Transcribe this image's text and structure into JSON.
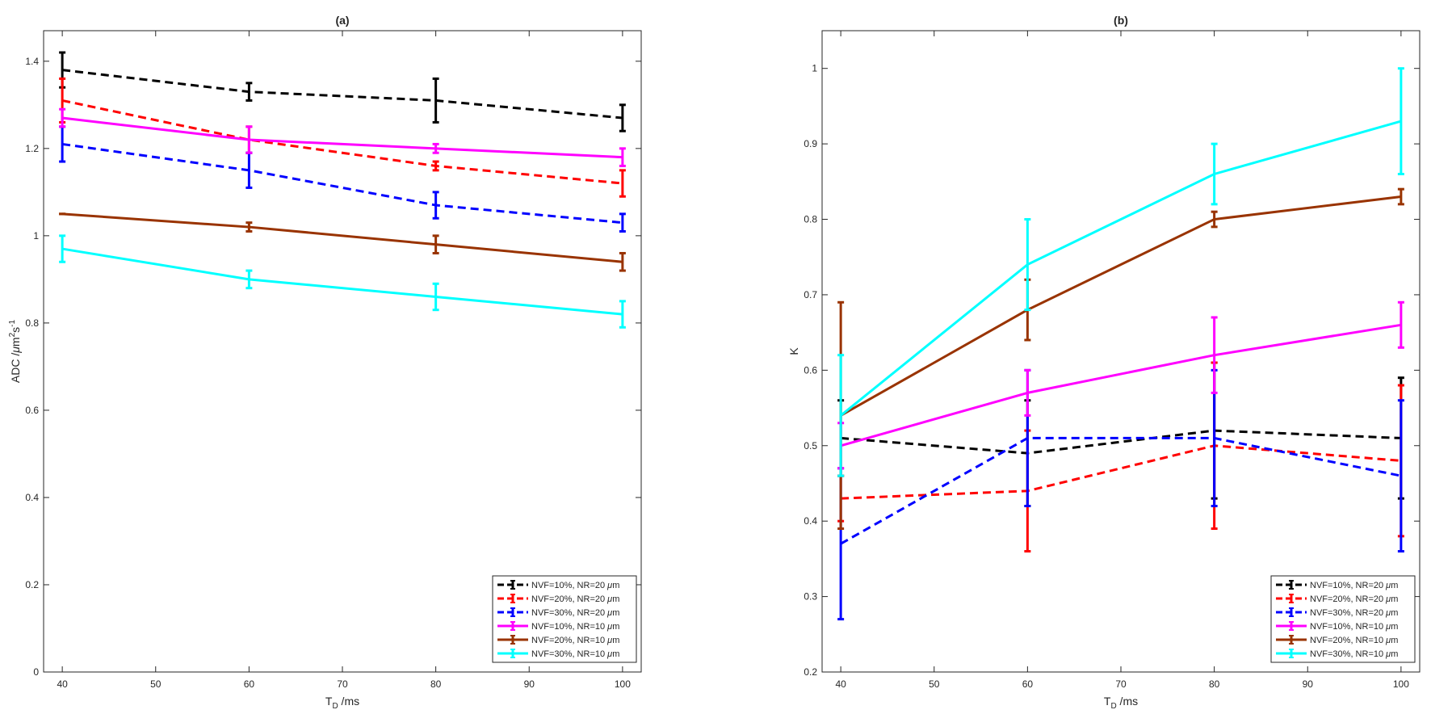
{
  "chart_data": [
    {
      "type": "line",
      "title": "(a)",
      "xlabel": {
        "main": "T",
        "sub": "D",
        "rest": " /ms"
      },
      "ylabel": {
        "pre": "ADC /",
        "mu": "μ",
        "m": "m",
        "sup1": "2",
        "s": "s",
        "sup2": "-1"
      },
      "xlim": [
        38,
        102
      ],
      "ylim": [
        0,
        1.47
      ],
      "xticks": [
        40,
        50,
        60,
        70,
        80,
        90,
        100
      ],
      "yticks": [
        0,
        0.2,
        0.4,
        0.6,
        0.8,
        1,
        1.2,
        1.4
      ],
      "ytick_labels": [
        "0",
        "0.2",
        "0.4",
        "0.6",
        "0.8",
        "1",
        "1.2",
        "1.4"
      ],
      "x": [
        40,
        60,
        80,
        100
      ],
      "legend_position": "bottom-right",
      "series": [
        {
          "name": "NVF=10%, NR=20 μm",
          "legend": {
            "pre": "NVF=10%, NR=20 ",
            "mu": "μ",
            "post": "m"
          },
          "color": "#000000",
          "dash": "dashed",
          "values": [
            1.38,
            1.33,
            1.31,
            1.27
          ],
          "errors": [
            0.04,
            0.02,
            0.05,
            0.03
          ]
        },
        {
          "name": "NVF=20%, NR=20 μm",
          "legend": {
            "pre": "NVF=20%, NR=20 ",
            "mu": "μ",
            "post": "m"
          },
          "color": "#ff0000",
          "dash": "dashed",
          "values": [
            1.31,
            1.22,
            1.16,
            1.12
          ],
          "errors": [
            0.05,
            0.03,
            0.01,
            0.03
          ]
        },
        {
          "name": "NVF=30%, NR=20 μm",
          "legend": {
            "pre": "NVF=30%, NR=20 ",
            "mu": "μ",
            "post": "m"
          },
          "color": "#0000ff",
          "dash": "dashed",
          "values": [
            1.21,
            1.15,
            1.07,
            1.03
          ],
          "errors": [
            0.04,
            0.04,
            0.03,
            0.02
          ]
        },
        {
          "name": "NVF=10%, NR=10 μm",
          "legend": {
            "pre": "NVF=10%, NR=10 ",
            "mu": "μ",
            "post": "m"
          },
          "color": "#ff00ff",
          "dash": "solid",
          "values": [
            1.27,
            1.22,
            1.2,
            1.18
          ],
          "errors": [
            0.02,
            0.03,
            0.01,
            0.02
          ]
        },
        {
          "name": "NVF=20%, NR=10 μm",
          "legend": {
            "pre": "NVF=20%, NR=10 ",
            "mu": "μ",
            "post": "m"
          },
          "color": "#993300",
          "dash": "solid",
          "values": [
            1.05,
            1.02,
            0.98,
            0.94
          ],
          "errors": [
            0.0,
            0.01,
            0.02,
            0.02
          ]
        },
        {
          "name": "NVF=30%, NR=10 μm",
          "legend": {
            "pre": "NVF=30%, NR=10 ",
            "mu": "μ",
            "post": "m"
          },
          "color": "#00ffff",
          "dash": "solid",
          "values": [
            0.97,
            0.9,
            0.86,
            0.82
          ],
          "errors": [
            0.03,
            0.02,
            0.03,
            0.03
          ]
        }
      ]
    },
    {
      "type": "line",
      "title": "(b)",
      "xlabel": {
        "main": "T",
        "sub": "D",
        "rest": " /ms"
      },
      "ylabel": {
        "pre": "K"
      },
      "xlim": [
        38,
        102
      ],
      "ylim": [
        0.2,
        1.05
      ],
      "xticks": [
        40,
        50,
        60,
        70,
        80,
        90,
        100
      ],
      "yticks": [
        0.2,
        0.3,
        0.4,
        0.5,
        0.6,
        0.7,
        0.8,
        0.9,
        1
      ],
      "ytick_labels": [
        "0.2",
        "0.3",
        "0.4",
        "0.5",
        "0.6",
        "0.7",
        "0.8",
        "0.9",
        "1"
      ],
      "x": [
        40,
        60,
        80,
        100
      ],
      "legend_position": "bottom-right",
      "series": [
        {
          "name": "NVF=10%, NR=20 μm",
          "legend": {
            "pre": "NVF=10%, NR=20 ",
            "mu": "μ",
            "post": "m"
          },
          "color": "#000000",
          "dash": "dashed",
          "values": [
            0.51,
            0.49,
            0.52,
            0.51
          ],
          "errors": [
            0.05,
            0.07,
            0.09,
            0.08
          ]
        },
        {
          "name": "NVF=20%, NR=20 μm",
          "legend": {
            "pre": "NVF=20%, NR=20 ",
            "mu": "μ",
            "post": "m"
          },
          "color": "#ff0000",
          "dash": "dashed",
          "values": [
            0.43,
            0.44,
            0.5,
            0.48
          ],
          "errors": [
            0.03,
            0.08,
            0.11,
            0.1
          ]
        },
        {
          "name": "NVF=30%, NR=20 μm",
          "legend": {
            "pre": "NVF=30%, NR=20 ",
            "mu": "μ",
            "post": "m"
          },
          "color": "#0000ff",
          "dash": "dashed",
          "values": [
            0.37,
            0.51,
            0.51,
            0.46
          ],
          "errors": [
            0.1,
            0.09,
            0.09,
            0.1
          ]
        },
        {
          "name": "NVF=10%, NR=10 μm",
          "legend": {
            "pre": "NVF=10%, NR=10 ",
            "mu": "μ",
            "post": "m"
          },
          "color": "#ff00ff",
          "dash": "solid",
          "values": [
            0.5,
            0.57,
            0.62,
            0.66
          ],
          "errors": [
            0.03,
            0.03,
            0.05,
            0.03
          ]
        },
        {
          "name": "NVF=20%, NR=10 μm",
          "legend": {
            "pre": "NVF=20%, NR=10 ",
            "mu": "μ",
            "post": "m"
          },
          "color": "#993300",
          "dash": "solid",
          "values": [
            0.54,
            0.68,
            0.8,
            0.83
          ],
          "errors": [
            0.15,
            0.04,
            0.01,
            0.01
          ]
        },
        {
          "name": "NVF=30%, NR=10 μm",
          "legend": {
            "pre": "NVF=30%, NR=10 ",
            "mu": "μ",
            "post": "m"
          },
          "color": "#00ffff",
          "dash": "solid",
          "values": [
            0.54,
            0.74,
            0.86,
            0.93
          ],
          "errors": [
            0.08,
            0.06,
            0.04,
            0.07
          ]
        }
      ]
    }
  ]
}
